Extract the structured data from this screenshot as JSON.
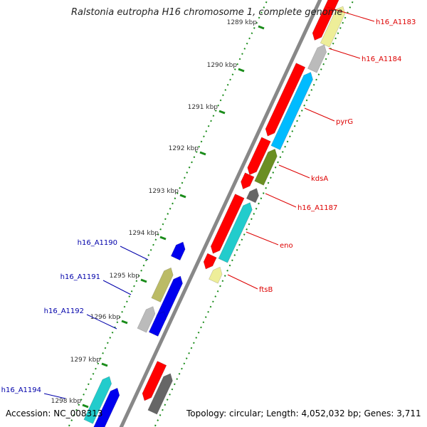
{
  "title": "Ralstonia eutropha H16 chromosome 1, complete genome",
  "accession": "Accession: NC_008313",
  "summary": "Topology: circular; Length: 4,052,032 bp; Genes: 3,711",
  "colors": {
    "backbone": "#888888",
    "tick": "#1a8c1a",
    "label_forward": "#dd0000",
    "label_reverse": "#0000aa"
  },
  "ticks": [
    "1289 kbp",
    "1290 kbp",
    "1291 kbp",
    "1292 kbp",
    "1293 kbp",
    "1294 kbp",
    "1295 kbp",
    "1296 kbp",
    "1297 kbp",
    "1298 kbp"
  ],
  "labels": {
    "forward": [
      "h16_A1183",
      "h16_A1184",
      "pyrG",
      "kdsA",
      "h16_A1187",
      "eno",
      "ftsB"
    ],
    "reverse": [
      "h16_A1190",
      "h16_A1191",
      "h16_A1192",
      "h16_A1194"
    ]
  },
  "gene_colors": {
    "red": "#ff0000",
    "gray": "#bbbbbb",
    "cyan": "#00bbff",
    "olive": "#6b8e23",
    "darkgray": "#666666",
    "turquoise": "#22cccc",
    "khaki": "#eeee99",
    "blue": "#0000ee",
    "darkkhaki": "#bbbb66"
  }
}
